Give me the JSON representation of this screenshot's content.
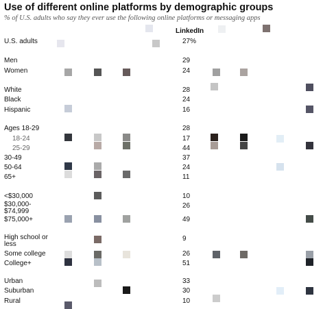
{
  "chart_data": {
    "type": "table",
    "title": "Use of different online platforms by demographic groups",
    "subtitle": "% of U.S. adults who say they ever use the following online platforms or messaging apps",
    "column": "LinkedIn",
    "rows": [
      {
        "label": "U.S. adults",
        "value": "27%",
        "sub": false
      },
      {
        "label": "Men",
        "value": "29",
        "sub": false
      },
      {
        "label": "Women",
        "value": "24",
        "sub": false
      },
      {
        "label": "White",
        "value": "28",
        "sub": false
      },
      {
        "label": "Black",
        "value": "24",
        "sub": false
      },
      {
        "label": "Hispanic",
        "value": "16",
        "sub": false
      },
      {
        "label": "Ages 18-29",
        "value": "28",
        "sub": false
      },
      {
        "label": "18-24",
        "value": "17",
        "sub": true
      },
      {
        "label": "25-29",
        "value": "44",
        "sub": true
      },
      {
        "label": "30-49",
        "value": "37",
        "sub": false
      },
      {
        "label": "50-64",
        "value": "24",
        "sub": false
      },
      {
        "label": "65+",
        "value": "11",
        "sub": false
      },
      {
        "label": "<$30,000",
        "value": "10",
        "sub": false
      },
      {
        "label": "$30,000-\n$74,999",
        "value": "26",
        "sub": false
      },
      {
        "label": "$75,000+",
        "value": "49",
        "sub": false
      },
      {
        "label": "High school or\nless",
        "value": "9",
        "sub": false
      },
      {
        "label": "Some college",
        "value": "26",
        "sub": false
      },
      {
        "label": "College+",
        "value": "51",
        "sub": false
      },
      {
        "label": "Urban",
        "value": "33",
        "sub": false
      },
      {
        "label": "Suburban",
        "value": "30",
        "sub": false
      },
      {
        "label": "Rural",
        "value": "10",
        "sub": false
      }
    ]
  }
}
